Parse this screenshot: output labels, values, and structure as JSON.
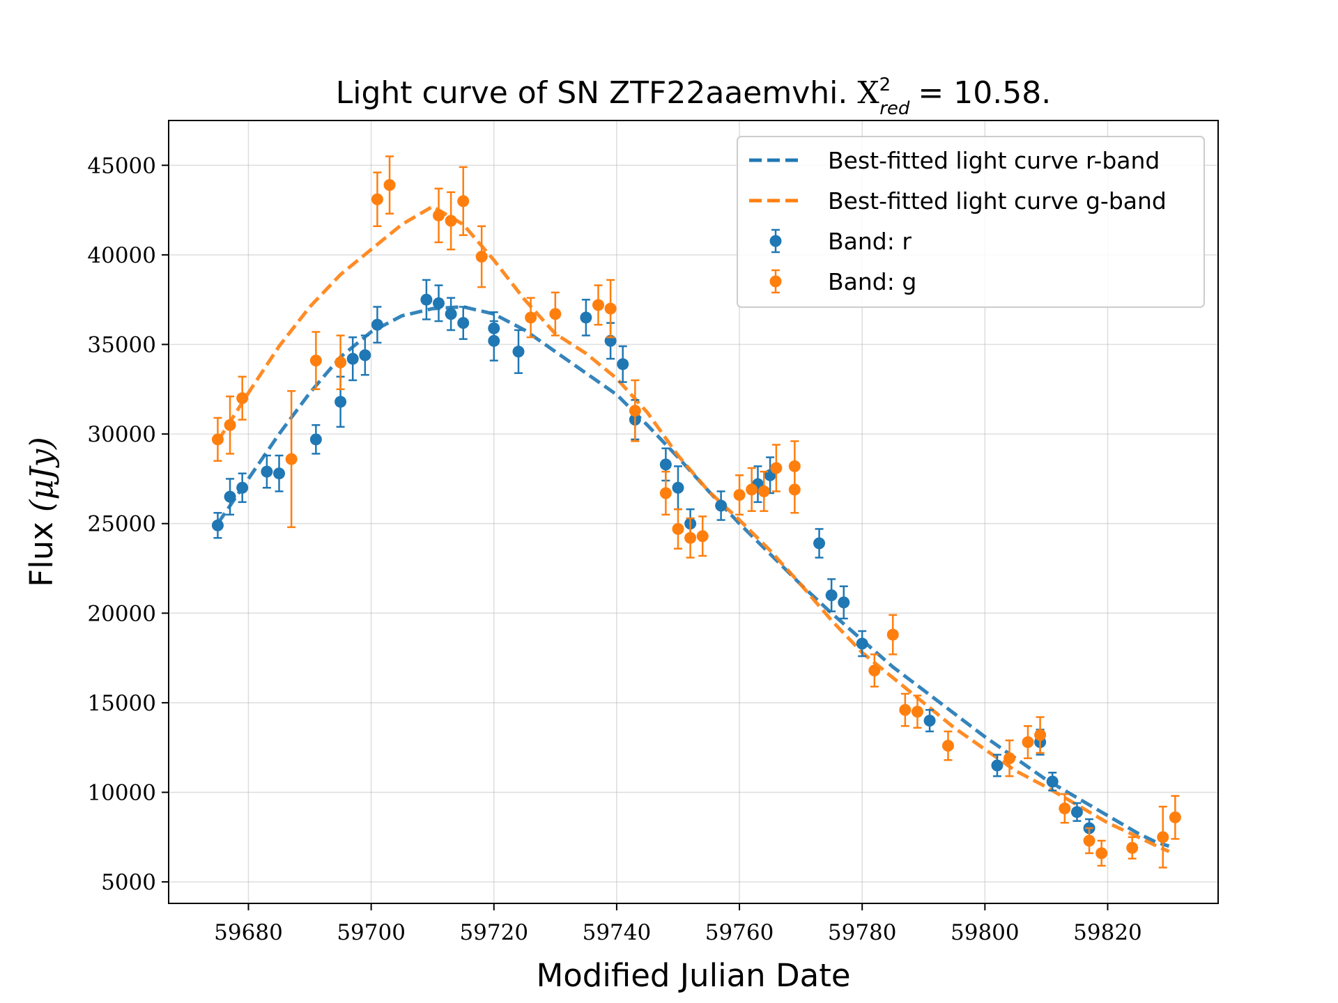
{
  "chart_data": {
    "type": "scatter",
    "title_main": "Light curve of SN ZTF22aaemvhi.",
    "title_stat_symbol": "X",
    "title_stat_sup": "2",
    "title_stat_sub": "red",
    "title_stat_value": "= 10.58.",
    "xlabel": "Modified Julian Date",
    "ylabel_main": "Flux",
    "ylabel_unit": "(μJy)",
    "xlim": [
      59667,
      59838
    ],
    "ylim": [
      3800,
      47500
    ],
    "xticks": [
      59680,
      59700,
      59720,
      59740,
      59760,
      59780,
      59800,
      59820
    ],
    "yticks": [
      5000,
      10000,
      15000,
      20000,
      25000,
      30000,
      35000,
      40000,
      45000
    ],
    "grid": true,
    "legend_position": "top-right",
    "colors": {
      "r": "#1f77b4",
      "g": "#ff7f0e"
    },
    "fits": [
      {
        "name": "Best-fitted light curve r-band",
        "band": "r",
        "x": [
          59675,
          59680,
          59685,
          59690,
          59695,
          59700,
          59705,
          59710,
          59715,
          59720,
          59725,
          59730,
          59735,
          59740,
          59745,
          59750,
          59755,
          59760,
          59765,
          59770,
          59775,
          59780,
          59785,
          59790,
          59795,
          59800,
          59805,
          59810,
          59815,
          59820,
          59825,
          59828,
          59830
        ],
        "y": [
          25000,
          27500,
          30000,
          32300,
          34300,
          35700,
          36600,
          37000,
          37100,
          36700,
          35800,
          34600,
          33400,
          32200,
          30500,
          28700,
          26800,
          25000,
          23300,
          21600,
          20000,
          18500,
          17000,
          15700,
          14400,
          13100,
          11900,
          10700,
          9700,
          8700,
          7700,
          7200,
          7000
        ]
      },
      {
        "name": "Best-fitted light curve g-band",
        "band": "g",
        "x": [
          59675,
          59680,
          59685,
          59690,
          59695,
          59700,
          59705,
          59710,
          59715,
          59720,
          59725,
          59730,
          59735,
          59740,
          59745,
          59750,
          59755,
          59760,
          59765,
          59770,
          59775,
          59780,
          59785,
          59790,
          59795,
          59800,
          59805,
          59810,
          59815,
          59820,
          59825,
          59828,
          59830
        ],
        "y": [
          29600,
          32300,
          34900,
          37100,
          38900,
          40300,
          41700,
          42700,
          41700,
          39700,
          37500,
          35600,
          34500,
          33100,
          31200,
          28800,
          26800,
          25200,
          23500,
          21600,
          19600,
          17800,
          16400,
          15000,
          13600,
          12400,
          11200,
          10300,
          9300,
          8300,
          7500,
          7000,
          6700
        ]
      }
    ],
    "series": [
      {
        "name": "Band: r",
        "band": "r",
        "x": [
          59675,
          59677,
          59679,
          59683,
          59685,
          59691,
          59695,
          59697,
          59699,
          59701,
          59709,
          59711,
          59713,
          59715,
          59720,
          59720,
          59724,
          59735,
          59739,
          59741,
          59743,
          59748,
          59750,
          59752,
          59757,
          59763,
          59765,
          59773,
          59775,
          59777,
          59780,
          59791,
          59802,
          59809,
          59811,
          59815,
          59817
        ],
        "y": [
          24900,
          26500,
          27000,
          27900,
          27800,
          29700,
          31800,
          34200,
          34400,
          36100,
          37500,
          37300,
          36700,
          36200,
          35900,
          35200,
          34600,
          36500,
          35200,
          33900,
          30800,
          28300,
          27000,
          25000,
          26000,
          27200,
          27700,
          23900,
          21000,
          20600,
          18300,
          14000,
          11500,
          12800,
          10600,
          8900,
          8000
        ],
        "err": [
          700,
          1000,
          800,
          900,
          1000,
          800,
          1400,
          1200,
          1100,
          1000,
          1100,
          1000,
          900,
          900,
          900,
          1100,
          1200,
          1000,
          1000,
          1000,
          1100,
          900,
          1200,
          800,
          800,
          1000,
          1000,
          800,
          900,
          900,
          700,
          600,
          600,
          700,
          500,
          500,
          500
        ]
      },
      {
        "name": "Band: g",
        "band": "g",
        "x": [
          59675,
          59677,
          59679,
          59687,
          59691,
          59695,
          59701,
          59703,
          59711,
          59713,
          59715,
          59718,
          59726,
          59730,
          59737,
          59739,
          59743,
          59748,
          59750,
          59752,
          59754,
          59760,
          59762,
          59764,
          59766,
          59769,
          59769,
          59782,
          59785,
          59787,
          59789,
          59794,
          59804,
          59807,
          59809,
          59813,
          59817,
          59819,
          59824,
          59829,
          59831
        ],
        "y": [
          29700,
          30500,
          32000,
          28600,
          34100,
          34000,
          43100,
          43900,
          42200,
          41900,
          43000,
          39900,
          36500,
          36700,
          37200,
          37000,
          31300,
          26700,
          24700,
          24200,
          24300,
          26600,
          26900,
          26800,
          28100,
          28200,
          26900,
          16800,
          18800,
          14600,
          14500,
          12600,
          11900,
          12800,
          13200,
          9100,
          7300,
          6600,
          6900,
          7500,
          8600
        ],
        "err": [
          1200,
          1600,
          1200,
          3800,
          1600,
          1500,
          1500,
          1600,
          1500,
          1600,
          1900,
          1700,
          1100,
          1200,
          1100,
          1600,
          1700,
          1200,
          1100,
          1100,
          1100,
          1100,
          1200,
          1100,
          1300,
          1400,
          1300,
          900,
          1100,
          900,
          900,
          800,
          1000,
          900,
          1000,
          800,
          700,
          700,
          600,
          1700,
          1200
        ]
      }
    ]
  }
}
